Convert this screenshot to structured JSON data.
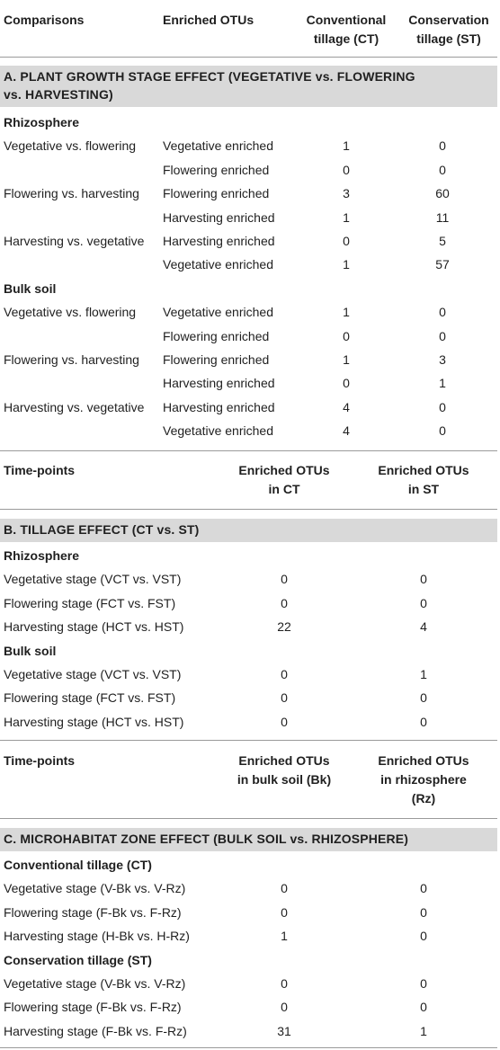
{
  "section_a": {
    "headers": [
      "Comparisons",
      "Enriched OTUs",
      "Conventional\ntillage (CT)",
      "Conservation\ntillage (ST)"
    ],
    "title_line1": "A. PLANT GROWTH STAGE EFFECT (VEGETATIVE vs. FLOWERING",
    "title_line2": "vs. HARVESTING)",
    "groups": [
      {
        "label": "Rhizosphere",
        "rows": [
          {
            "comparison": "Vegetative vs. flowering",
            "otus": "Vegetative enriched",
            "ct": "1",
            "st": "0"
          },
          {
            "comparison": "",
            "otus": "Flowering enriched",
            "ct": "0",
            "st": "0"
          },
          {
            "comparison": "Flowering vs. harvesting",
            "otus": "Flowering enriched",
            "ct": "3",
            "st": "60"
          },
          {
            "comparison": "",
            "otus": "Harvesting enriched",
            "ct": "1",
            "st": "11"
          },
          {
            "comparison": "Harvesting vs. vegetative",
            "otus": "Harvesting enriched",
            "ct": "0",
            "st": "5"
          },
          {
            "comparison": "",
            "otus": "Vegetative enriched",
            "ct": "1",
            "st": "57"
          }
        ]
      },
      {
        "label": "Bulk soil",
        "rows": [
          {
            "comparison": "Vegetative vs. flowering",
            "otus": "Vegetative enriched",
            "ct": "1",
            "st": "0"
          },
          {
            "comparison": "",
            "otus": "Flowering enriched",
            "ct": "0",
            "st": "0"
          },
          {
            "comparison": "Flowering vs. harvesting",
            "otus": "Flowering enriched",
            "ct": "1",
            "st": "3"
          },
          {
            "comparison": "",
            "otus": "Harvesting enriched",
            "ct": "0",
            "st": "1"
          },
          {
            "comparison": "Harvesting vs. vegetative",
            "otus": "Harvesting enriched",
            "ct": "4",
            "st": "0"
          },
          {
            "comparison": "",
            "otus": "Vegetative enriched",
            "ct": "4",
            "st": "0"
          }
        ]
      }
    ]
  },
  "section_b": {
    "headers": [
      "Time-points",
      "Enriched OTUs\nin CT",
      "Enriched OTUs\nin ST"
    ],
    "title": "B. TILLAGE EFFECT (CT vs. ST)",
    "groups": [
      {
        "label": "Rhizosphere",
        "rows": [
          {
            "time": "Vegetative stage (VCT vs. VST)",
            "a": "0",
            "b": "0"
          },
          {
            "time": "Flowering stage (FCT vs. FST)",
            "a": "0",
            "b": "0"
          },
          {
            "time": "Harvesting stage (HCT vs. HST)",
            "a": "22",
            "b": "4"
          }
        ]
      },
      {
        "label": "Bulk soil",
        "rows": [
          {
            "time": "Vegetative stage (VCT vs. VST)",
            "a": "0",
            "b": "1"
          },
          {
            "time": "Flowering stage (FCT vs. FST)",
            "a": "0",
            "b": "0"
          },
          {
            "time": "Harvesting stage (HCT vs. HST)",
            "a": "0",
            "b": "0"
          }
        ]
      }
    ]
  },
  "section_c": {
    "headers": [
      "Time-points",
      "Enriched OTUs\nin bulk soil (Bk)",
      "Enriched OTUs\nin rhizosphere\n(Rz)"
    ],
    "title": "C. MICROHABITAT ZONE EFFECT (BULK SOIL vs. RHIZOSPHERE)",
    "groups": [
      {
        "label": "Conventional tillage (CT)",
        "rows": [
          {
            "time": "Vegetative stage (V-Bk vs. V-Rz)",
            "a": "0",
            "b": "0"
          },
          {
            "time": "Flowering stage (F-Bk vs. F-Rz)",
            "a": "0",
            "b": "0"
          },
          {
            "time": "Harvesting stage (H-Bk vs. H-Rz)",
            "a": "1",
            "b": "0"
          }
        ]
      },
      {
        "label": "Conservation tillage (ST)",
        "rows": [
          {
            "time": "Vegetative stage (V-Bk vs. V-Rz)",
            "a": "0",
            "b": "0"
          },
          {
            "time": "Flowering stage (F-Bk vs. F-Rz)",
            "a": "0",
            "b": "0"
          },
          {
            "time": "Harvesting stage (F-Bk vs. F-Rz)",
            "a": "31",
            "b": "1"
          }
        ]
      }
    ]
  }
}
